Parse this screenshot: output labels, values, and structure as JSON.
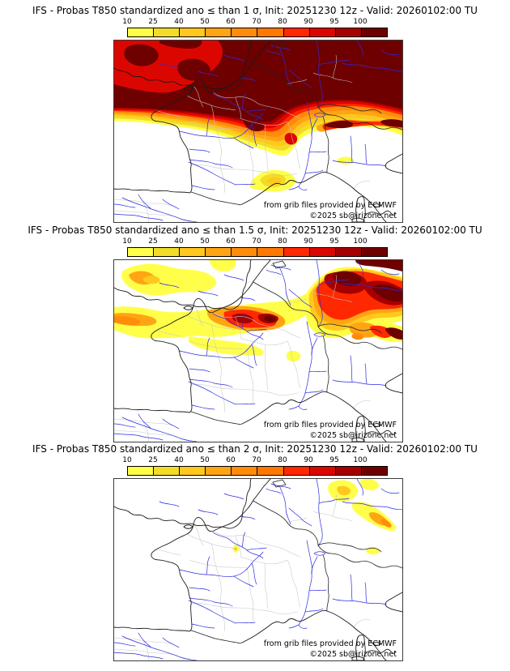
{
  "page": {
    "background": "#ffffff"
  },
  "colorbar": {
    "tick_labels": [
      "10",
      "25",
      "40",
      "50",
      "60",
      "70",
      "80",
      "90",
      "95",
      "100"
    ],
    "segment_colors": [
      "#FFFF4A",
      "#F2DC28",
      "#FFC81E",
      "#FFA514",
      "#FF8C0A",
      "#FF7800",
      "#FF2800",
      "#DC0600",
      "#A60000",
      "#6E0000"
    ]
  },
  "map_colors": {
    "coastline": "#1a1a1a",
    "borders": "#222222",
    "departments": "#c5c5c5",
    "rivers": "#2b2be0",
    "frame": "#3c3c3c"
  },
  "map_credits": {
    "line1": "from grib files provided by ECMWF",
    "line2": "©2025 sb@irizone.net"
  },
  "panels": [
    {
      "threshold": "1",
      "title": "IFS - Probas T850  standardized ano ≤ than 1 σ, Init: 20251230 12z - Valid: 20260102:00 TU"
    },
    {
      "threshold": "1.5",
      "title": "IFS - Probas T850  standardized ano ≤ than 1.5 σ, Init: 20251230 12z - Valid: 20260102:00 TU"
    },
    {
      "threshold": "2",
      "title": "IFS - Probas T850  standardized ano ≤ than 2 σ, Init: 20251230 12z - Valid: 20260102:00 TU"
    }
  ]
}
